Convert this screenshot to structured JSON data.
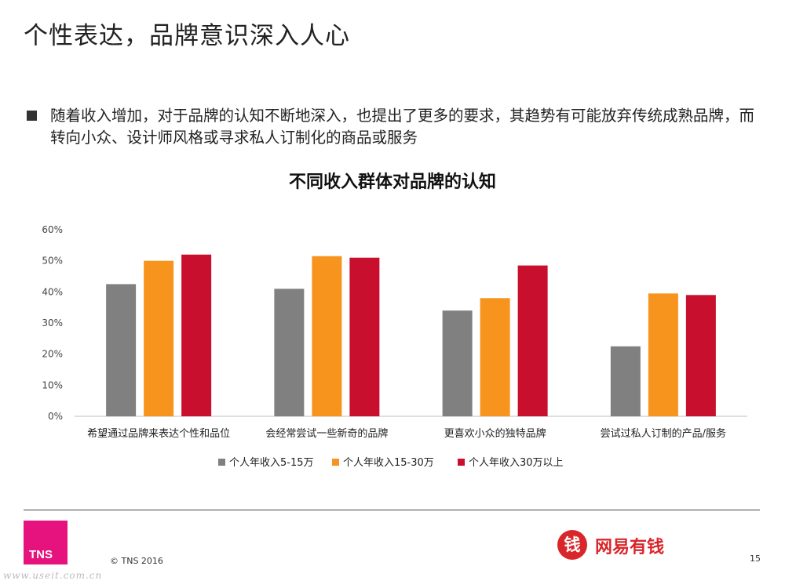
{
  "page": {
    "title": "个性表达，品牌意识深入人心",
    "bullet": "随着收入增加，对于品牌的认知不断地深入，也提出了更多的要求，其趋势有可能放弃传统成熟品牌，而转向小众、设计师风格或寻求私人订制化的商品或服务",
    "copyright": "© TNS 2016",
    "page_number": "15",
    "tns_logo": "TNS",
    "brand_icon_char": "钱",
    "brand_name": "网易有钱",
    "watermark": "www.useit.com.cn"
  },
  "colors": {
    "gray": "#808080",
    "orange": "#f7941d",
    "red": "#c8102e",
    "tns_pink": "#e6137e",
    "brand_red": "#d9262b"
  },
  "chart_data": {
    "type": "bar",
    "title": "不同收入群体对品牌的认知",
    "categories": [
      "希望通过品牌来表达个性和品位",
      "会经常尝试一些新奇的品牌",
      "更喜欢小众的独特品牌",
      "尝试过私人订制的产品/服务"
    ],
    "series": [
      {
        "name": "个人年收入5-15万",
        "color": "#808080",
        "values": [
          42.5,
          41,
          34,
          22.5
        ]
      },
      {
        "name": "个人年收入15-30万",
        "color": "#f7941d",
        "values": [
          50,
          51.5,
          38,
          39.5
        ]
      },
      {
        "name": "个人年收入30万以上",
        "color": "#c8102e",
        "values": [
          52,
          51,
          48.5,
          39
        ]
      }
    ],
    "ylim": [
      0,
      60
    ],
    "yticks": [
      "0%",
      "10%",
      "20%",
      "30%",
      "40%",
      "50%",
      "60%"
    ],
    "grid": false,
    "legend": "bottom"
  }
}
